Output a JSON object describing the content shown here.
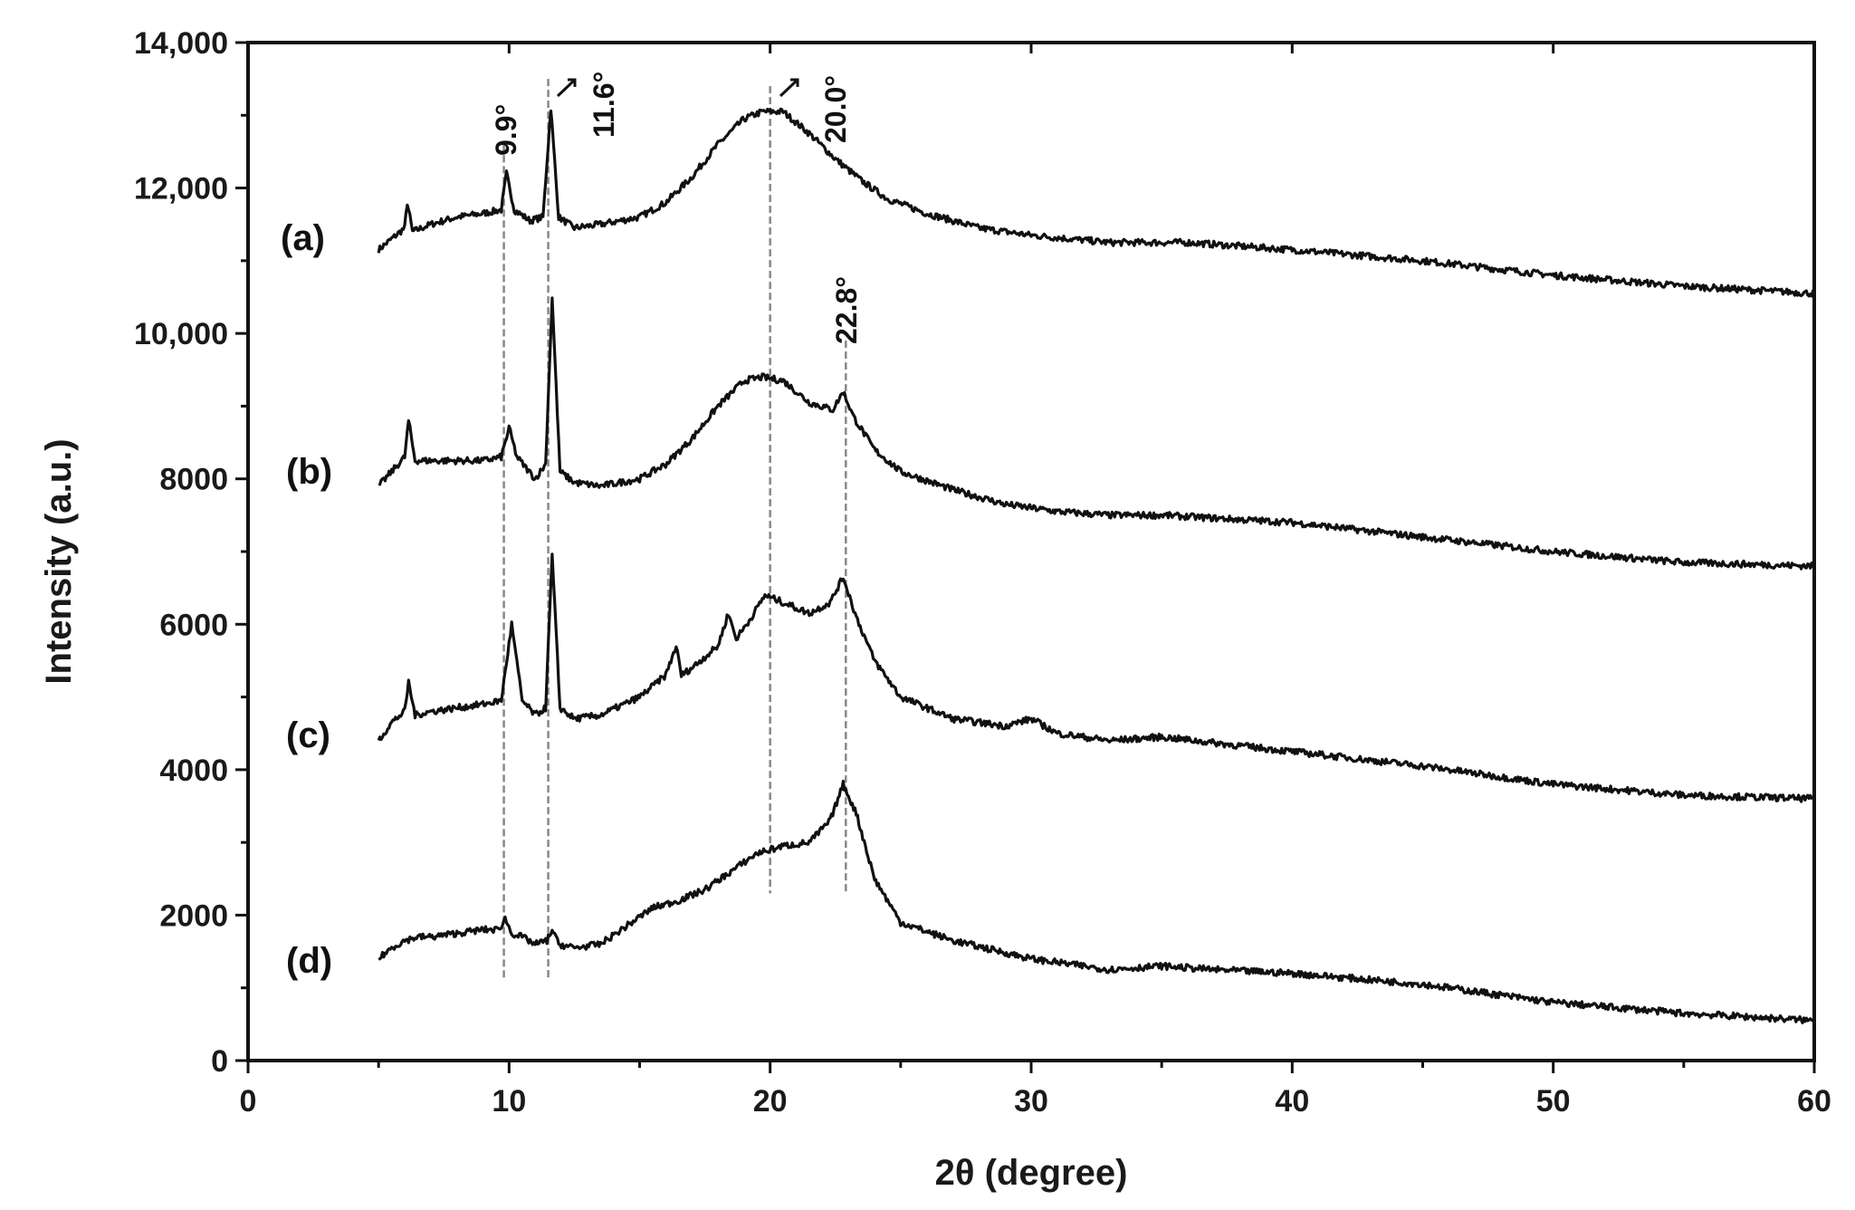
{
  "chart_data": {
    "type": "line",
    "xlabel": "2θ (degree)",
    "ylabel": "Intensity (a.u.)",
    "xlim": [
      0,
      60
    ],
    "ylim": [
      0,
      14000
    ],
    "x_ticks": [
      0,
      10,
      20,
      30,
      40,
      50,
      60
    ],
    "x_tick_labels": [
      "0",
      "10",
      "20",
      "30",
      "40",
      "50",
      "60"
    ],
    "y_ticks": [
      0,
      2000,
      4000,
      6000,
      8000,
      10000,
      12000,
      14000
    ],
    "y_tick_labels": [
      "0",
      "2000",
      "4000",
      "6000",
      "8000",
      "10,000",
      "12,000",
      "14,000"
    ],
    "grid": false,
    "line_color": "#111111",
    "guide_color": "#888888",
    "series": [
      {
        "name": "(a)",
        "x": [
          5,
          5.5,
          6.0,
          6.1,
          6.3,
          7,
          8,
          9,
          9.7,
          9.9,
          10.2,
          10.8,
          11.3,
          11.6,
          11.9,
          12.5,
          13.5,
          15,
          16,
          17,
          18,
          19,
          19.7,
          20.5,
          21.5,
          22.5,
          23.5,
          24.5,
          26,
          28,
          30,
          33,
          36,
          40,
          45,
          50,
          55,
          60
        ],
        "y": [
          11150,
          11300,
          11450,
          11800,
          11400,
          11500,
          11600,
          11650,
          11700,
          12200,
          11700,
          11550,
          11600,
          13100,
          11600,
          11450,
          11500,
          11600,
          11800,
          12150,
          12600,
          12950,
          13050,
          13050,
          12750,
          12400,
          12100,
          11850,
          11650,
          11450,
          11350,
          11250,
          11250,
          11150,
          11000,
          10800,
          10650,
          10550
        ]
      },
      {
        "name": "(b)",
        "x": [
          5,
          5.5,
          6.0,
          6.15,
          6.4,
          7,
          8,
          9,
          9.7,
          10.0,
          10.3,
          11.0,
          11.4,
          11.65,
          11.95,
          12.5,
          13.5,
          15,
          16,
          17,
          18,
          19,
          19.7,
          20.5,
          21.5,
          22.4,
          22.8,
          23.2,
          24,
          25,
          27,
          29,
          31,
          33,
          35,
          40,
          45,
          50,
          55,
          60
        ],
        "y": [
          7900,
          8100,
          8300,
          8800,
          8250,
          8250,
          8250,
          8250,
          8300,
          8700,
          8300,
          8000,
          8200,
          10500,
          8100,
          7950,
          7900,
          8000,
          8200,
          8550,
          9000,
          9350,
          9400,
          9350,
          9050,
          8950,
          9200,
          8850,
          8400,
          8100,
          7850,
          7650,
          7550,
          7500,
          7500,
          7400,
          7200,
          7000,
          6850,
          6800
        ]
      },
      {
        "name": "(c)",
        "x": [
          5,
          5.5,
          6.0,
          6.15,
          6.4,
          7,
          8,
          9,
          9.7,
          10.1,
          10.5,
          11.0,
          11.4,
          11.65,
          11.95,
          12.5,
          13.5,
          15,
          16,
          16.4,
          16.6,
          17,
          18,
          18.4,
          18.7,
          19.2,
          19.8,
          20.5,
          21.5,
          22.3,
          22.8,
          23.3,
          24,
          25,
          27,
          29,
          30,
          31,
          33,
          35,
          40,
          45,
          50,
          55,
          60
        ],
        "y": [
          4400,
          4650,
          4800,
          5200,
          4750,
          4800,
          4850,
          4900,
          4950,
          6000,
          4950,
          4750,
          4850,
          6950,
          4850,
          4700,
          4750,
          5000,
          5300,
          5700,
          5300,
          5400,
          5700,
          6150,
          5800,
          6050,
          6400,
          6300,
          6150,
          6300,
          6650,
          6100,
          5500,
          5000,
          4700,
          4600,
          4700,
          4500,
          4400,
          4450,
          4250,
          4050,
          3800,
          3650,
          3600
        ]
      },
      {
        "name": "(d)",
        "x": [
          5,
          5.5,
          6.0,
          6.5,
          7,
          8,
          9,
          9.6,
          9.85,
          10.1,
          10.5,
          11.0,
          11.45,
          11.65,
          11.9,
          12.5,
          13.5,
          14.5,
          15.5,
          16.5,
          17.5,
          18.5,
          19.5,
          20.5,
          21.5,
          22.3,
          22.8,
          23.3,
          24,
          25,
          27,
          30,
          33,
          35,
          37,
          40,
          45,
          50,
          55,
          60
        ],
        "y": [
          1400,
          1550,
          1650,
          1700,
          1700,
          1750,
          1800,
          1800,
          1950,
          1750,
          1700,
          1600,
          1650,
          1800,
          1600,
          1550,
          1600,
          1850,
          2100,
          2200,
          2350,
          2600,
          2850,
          2950,
          3000,
          3300,
          3800,
          3400,
          2500,
          1900,
          1650,
          1400,
          1250,
          1300,
          1250,
          1200,
          1050,
          800,
          650,
          550
        ]
      }
    ],
    "peak_guides": [
      {
        "label": "9.9°",
        "x": 9.8
      },
      {
        "label": "11.6°",
        "x": 11.5
      },
      {
        "label": "20.0°",
        "x": 20.0
      },
      {
        "label": "22.8°",
        "x": 22.9
      }
    ]
  }
}
